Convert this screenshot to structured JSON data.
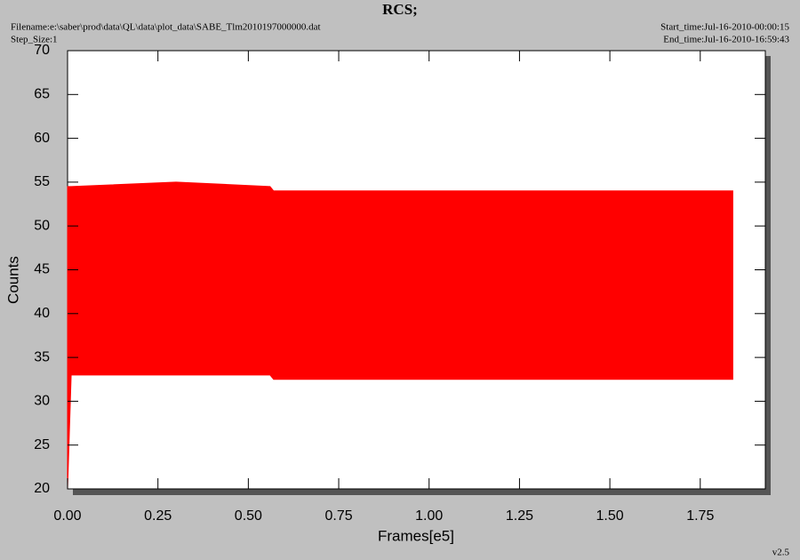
{
  "chart_data": {
    "type": "range",
    "title": "RCS;",
    "filename": "Filename:e:\\saber\\prod\\data\\QL\\data\\plot_data\\SABE_Tlm2010197000000.dat",
    "step_size": "Step_Size:1",
    "start_time": "Start_time:Jul-16-2010-00:00:15",
    "end_time": "End_time:Jul-16-2010-16:59:43",
    "version": "v2.5",
    "xlabel": "Frames[e5]",
    "ylabel": "Counts",
    "xlim": [
      0,
      1.93
    ],
    "ylim": [
      20,
      70
    ],
    "xticks": [
      {
        "value": 0,
        "label": "0.00"
      },
      {
        "value": 0.25,
        "label": "0.25"
      },
      {
        "value": 0.5,
        "label": "0.50"
      },
      {
        "value": 0.75,
        "label": "0.75"
      },
      {
        "value": 1,
        "label": "1.00"
      },
      {
        "value": 1.25,
        "label": "1.25"
      },
      {
        "value": 1.5,
        "label": "1.50"
      },
      {
        "value": 1.75,
        "label": "1.75"
      }
    ],
    "yticks": [
      20,
      25,
      30,
      35,
      40,
      45,
      50,
      55,
      60,
      65,
      70
    ],
    "series": [
      {
        "color": "#ff0000",
        "x": [
          0,
          0.01,
          0.3,
          0.56,
          0.57,
          1.2,
          1.84
        ],
        "high": [
          54.5,
          54.5,
          55,
          54.5,
          54,
          54,
          54
        ],
        "low": [
          20,
          33,
          33,
          33,
          32.5,
          32.5,
          32.5
        ]
      }
    ]
  }
}
